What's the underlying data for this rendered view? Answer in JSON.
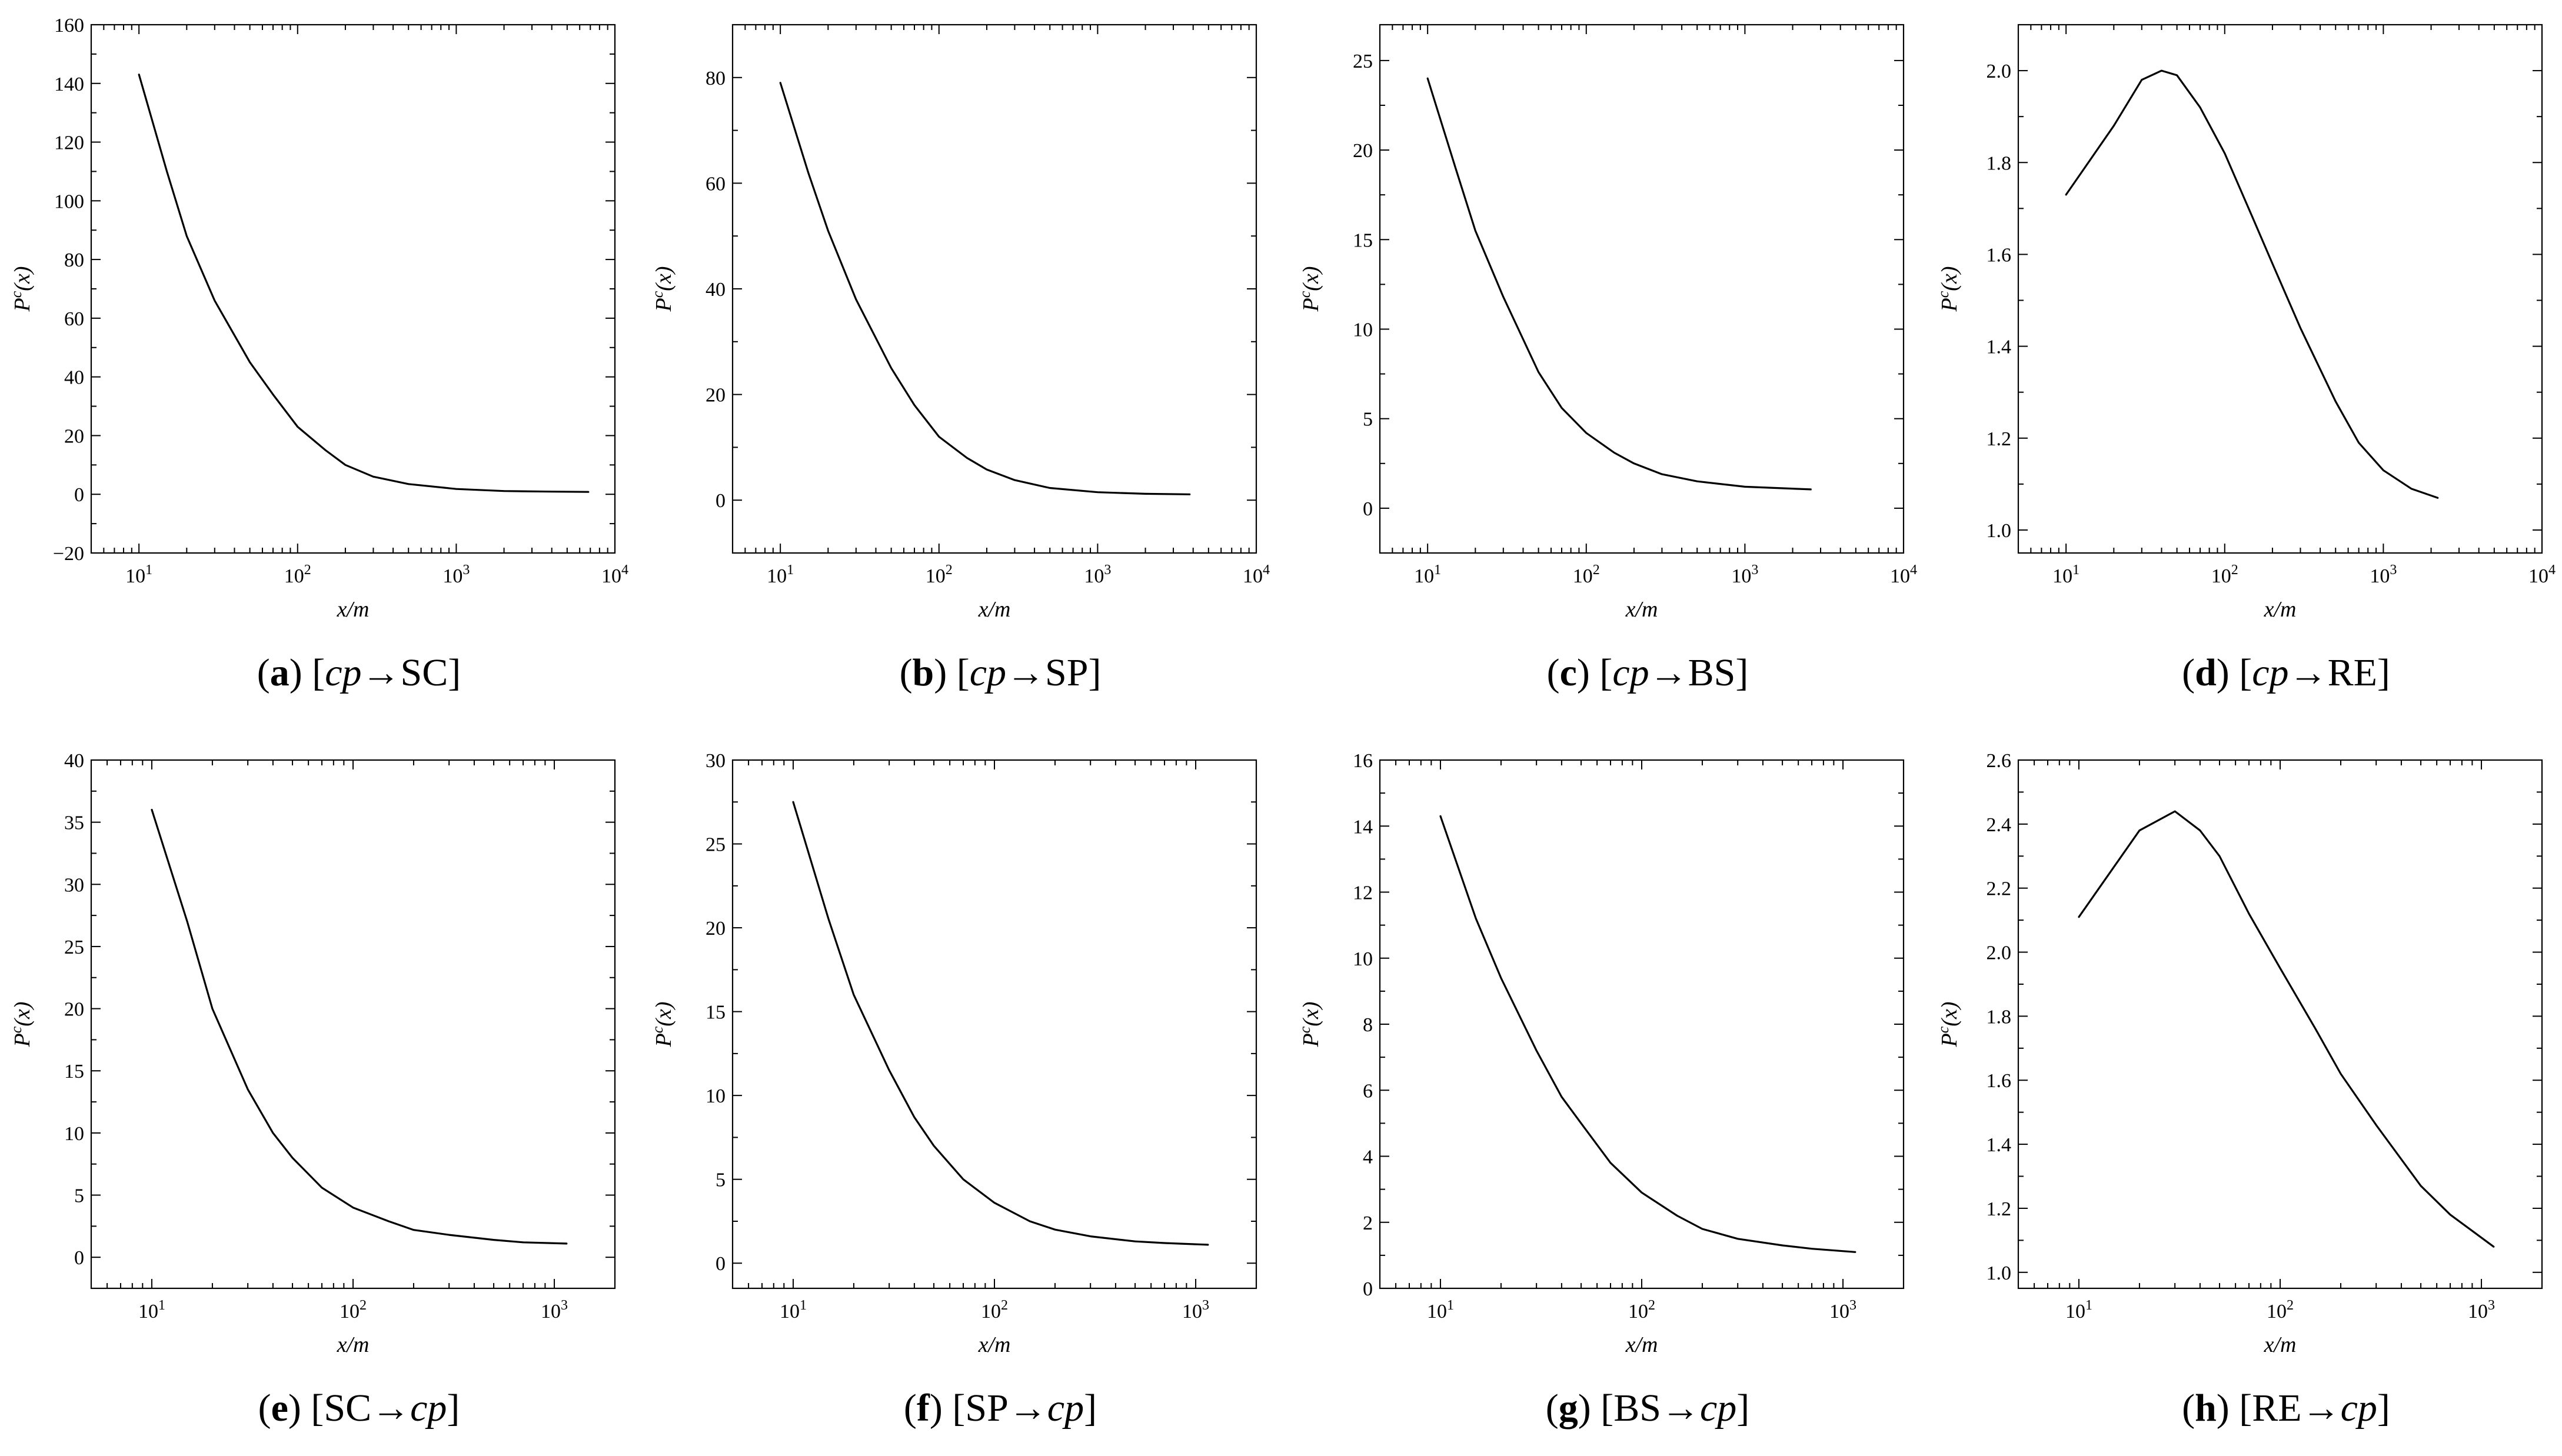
{
  "chart_data": [
    {
      "type": "line",
      "xlabel": "x/m",
      "ylabel": "P",
      "ylabel_sup": "c",
      "ylabel_arg": "(x)",
      "xscale": "log",
      "xlim": [
        5,
        10000
      ],
      "ylim": [
        -20,
        160
      ],
      "xticks": [
        10,
        100,
        1000,
        10000
      ],
      "yticks": [
        "−20",
        "0",
        "20",
        "40",
        "60",
        "80",
        "100",
        "120",
        "140",
        "160"
      ],
      "grid": false,
      "caption": {
        "letter": "a",
        "from": "cp",
        "to": "SC"
      },
      "series": [
        {
          "x": [
            10,
            15,
            20,
            30,
            50,
            70,
            100,
            150,
            200,
            300,
            500,
            1000,
            2000,
            4000,
            6800
          ],
          "y": [
            143,
            110,
            88,
            66,
            45,
            34,
            23,
            15,
            10,
            6,
            3.5,
            1.8,
            1.1,
            0.9,
            0.8
          ]
        }
      ]
    },
    {
      "type": "line",
      "xlabel": "x/m",
      "ylabel": "P",
      "ylabel_sup": "c",
      "ylabel_arg": "(x)",
      "xscale": "log",
      "xlim": [
        5,
        10000
      ],
      "ylim": [
        -10,
        90
      ],
      "xticks": [
        10,
        100,
        1000,
        10000
      ],
      "yticks": [
        "0",
        "20",
        "40",
        "60",
        "80"
      ],
      "grid": false,
      "caption": {
        "letter": "b",
        "from": "cp",
        "to": "SP"
      },
      "series": [
        {
          "x": [
            10,
            15,
            20,
            30,
            50,
            70,
            100,
            150,
            200,
            300,
            500,
            1000,
            2000,
            3800
          ],
          "y": [
            79,
            62,
            51,
            38,
            25,
            18,
            12,
            8,
            5.8,
            3.8,
            2.3,
            1.5,
            1.2,
            1.1
          ]
        }
      ]
    },
    {
      "type": "line",
      "xlabel": "x/m",
      "ylabel": "P",
      "ylabel_sup": "c",
      "ylabel_arg": "(x)",
      "xscale": "log",
      "xlim": [
        5,
        10000
      ],
      "ylim": [
        -2.5,
        27
      ],
      "xticks": [
        10,
        100,
        1000,
        10000
      ],
      "yticks": [
        "0",
        "5",
        "10",
        "15",
        "20",
        "25"
      ],
      "grid": false,
      "caption": {
        "letter": "c",
        "from": "cp",
        "to": "BS"
      },
      "series": [
        {
          "x": [
            10,
            15,
            20,
            30,
            50,
            70,
            100,
            150,
            200,
            300,
            500,
            1000,
            2600
          ],
          "y": [
            24,
            19,
            15.5,
            11.8,
            7.6,
            5.6,
            4.2,
            3.1,
            2.5,
            1.9,
            1.5,
            1.2,
            1.05
          ]
        }
      ]
    },
    {
      "type": "line",
      "xlabel": "x/m",
      "ylabel": "P",
      "ylabel_sup": "c",
      "ylabel_arg": "(x)",
      "xscale": "log",
      "xlim": [
        5,
        10000
      ],
      "ylim": [
        0.95,
        2.1
      ],
      "xticks": [
        10,
        100,
        1000,
        10000
      ],
      "yticks": [
        "1.0",
        "1.2",
        "1.4",
        "1.6",
        "1.8",
        "2.0"
      ],
      "grid": false,
      "caption": {
        "letter": "d",
        "from": "cp",
        "to": "RE"
      },
      "series": [
        {
          "x": [
            10,
            20,
            30,
            40,
            50,
            70,
            100,
            150,
            200,
            300,
            500,
            700,
            1000,
            1500,
            2200
          ],
          "y": [
            1.73,
            1.88,
            1.98,
            2.0,
            1.99,
            1.92,
            1.82,
            1.68,
            1.58,
            1.44,
            1.28,
            1.19,
            1.13,
            1.09,
            1.07
          ]
        }
      ]
    },
    {
      "type": "line",
      "xlabel": "x/m",
      "ylabel": "P",
      "ylabel_sup": "c",
      "ylabel_arg": "(x)",
      "xscale": "log",
      "xlim": [
        5,
        2000
      ],
      "ylim": [
        -2.5,
        40
      ],
      "xticks": [
        10,
        100,
        1000
      ],
      "yticks": [
        "0",
        "5",
        "10",
        "15",
        "20",
        "25",
        "30",
        "35",
        "40"
      ],
      "grid": false,
      "caption": {
        "letter": "e",
        "from": "SC",
        "to": "cp"
      },
      "series": [
        {
          "x": [
            10,
            15,
            20,
            30,
            40,
            50,
            70,
            100,
            150,
            200,
            300,
            500,
            700,
            1150
          ],
          "y": [
            36,
            27,
            20,
            13.5,
            10,
            8,
            5.6,
            4,
            2.9,
            2.2,
            1.8,
            1.4,
            1.2,
            1.1
          ]
        }
      ]
    },
    {
      "type": "line",
      "xlabel": "x/m",
      "ylabel": "P",
      "ylabel_sup": "c",
      "ylabel_arg": "(x)",
      "xscale": "log",
      "xlim": [
        5,
        2000
      ],
      "ylim": [
        -1.5,
        30
      ],
      "xticks": [
        10,
        100,
        1000
      ],
      "yticks": [
        "0",
        "5",
        "10",
        "15",
        "20",
        "25",
        "30"
      ],
      "grid": false,
      "caption": {
        "letter": "f",
        "from": "SP",
        "to": "cp"
      },
      "series": [
        {
          "x": [
            10,
            15,
            20,
            30,
            40,
            50,
            70,
            100,
            150,
            200,
            300,
            500,
            700,
            1150
          ],
          "y": [
            27.5,
            20.5,
            16,
            11.5,
            8.7,
            7,
            5,
            3.6,
            2.5,
            2,
            1.6,
            1.3,
            1.2,
            1.1
          ]
        }
      ]
    },
    {
      "type": "line",
      "xlabel": "x/m",
      "ylabel": "P",
      "ylabel_sup": "c",
      "ylabel_arg": "(x)",
      "xscale": "log",
      "xlim": [
        5,
        2000
      ],
      "ylim": [
        0,
        16
      ],
      "xticks": [
        10,
        100,
        1000
      ],
      "yticks": [
        "0",
        "2",
        "4",
        "6",
        "8",
        "10",
        "12",
        "14",
        "16"
      ],
      "grid": false,
      "caption": {
        "letter": "g",
        "from": "BS",
        "to": "cp"
      },
      "series": [
        {
          "x": [
            10,
            15,
            20,
            30,
            40,
            50,
            70,
            100,
            150,
            200,
            300,
            500,
            700,
            1150
          ],
          "y": [
            14.3,
            11.2,
            9.4,
            7.2,
            5.8,
            5,
            3.8,
            2.9,
            2.2,
            1.8,
            1.5,
            1.3,
            1.2,
            1.1
          ]
        }
      ]
    },
    {
      "type": "line",
      "xlabel": "x/m",
      "ylabel": "P",
      "ylabel_sup": "c",
      "ylabel_arg": "(x)",
      "xscale": "log",
      "xlim": [
        5,
        2000
      ],
      "ylim": [
        0.95,
        2.6
      ],
      "xticks": [
        10,
        100,
        1000
      ],
      "yticks": [
        "1.0",
        "1.2",
        "1.4",
        "1.6",
        "1.8",
        "2.0",
        "2.2",
        "2.4",
        "2.6"
      ],
      "grid": false,
      "caption": {
        "letter": "h",
        "from": "RE",
        "to": "cp"
      },
      "series": [
        {
          "x": [
            10,
            20,
            30,
            40,
            50,
            70,
            100,
            150,
            200,
            300,
            500,
            700,
            1150
          ],
          "y": [
            2.11,
            2.38,
            2.44,
            2.38,
            2.3,
            2.12,
            1.95,
            1.76,
            1.62,
            1.46,
            1.27,
            1.18,
            1.08
          ]
        }
      ]
    }
  ]
}
